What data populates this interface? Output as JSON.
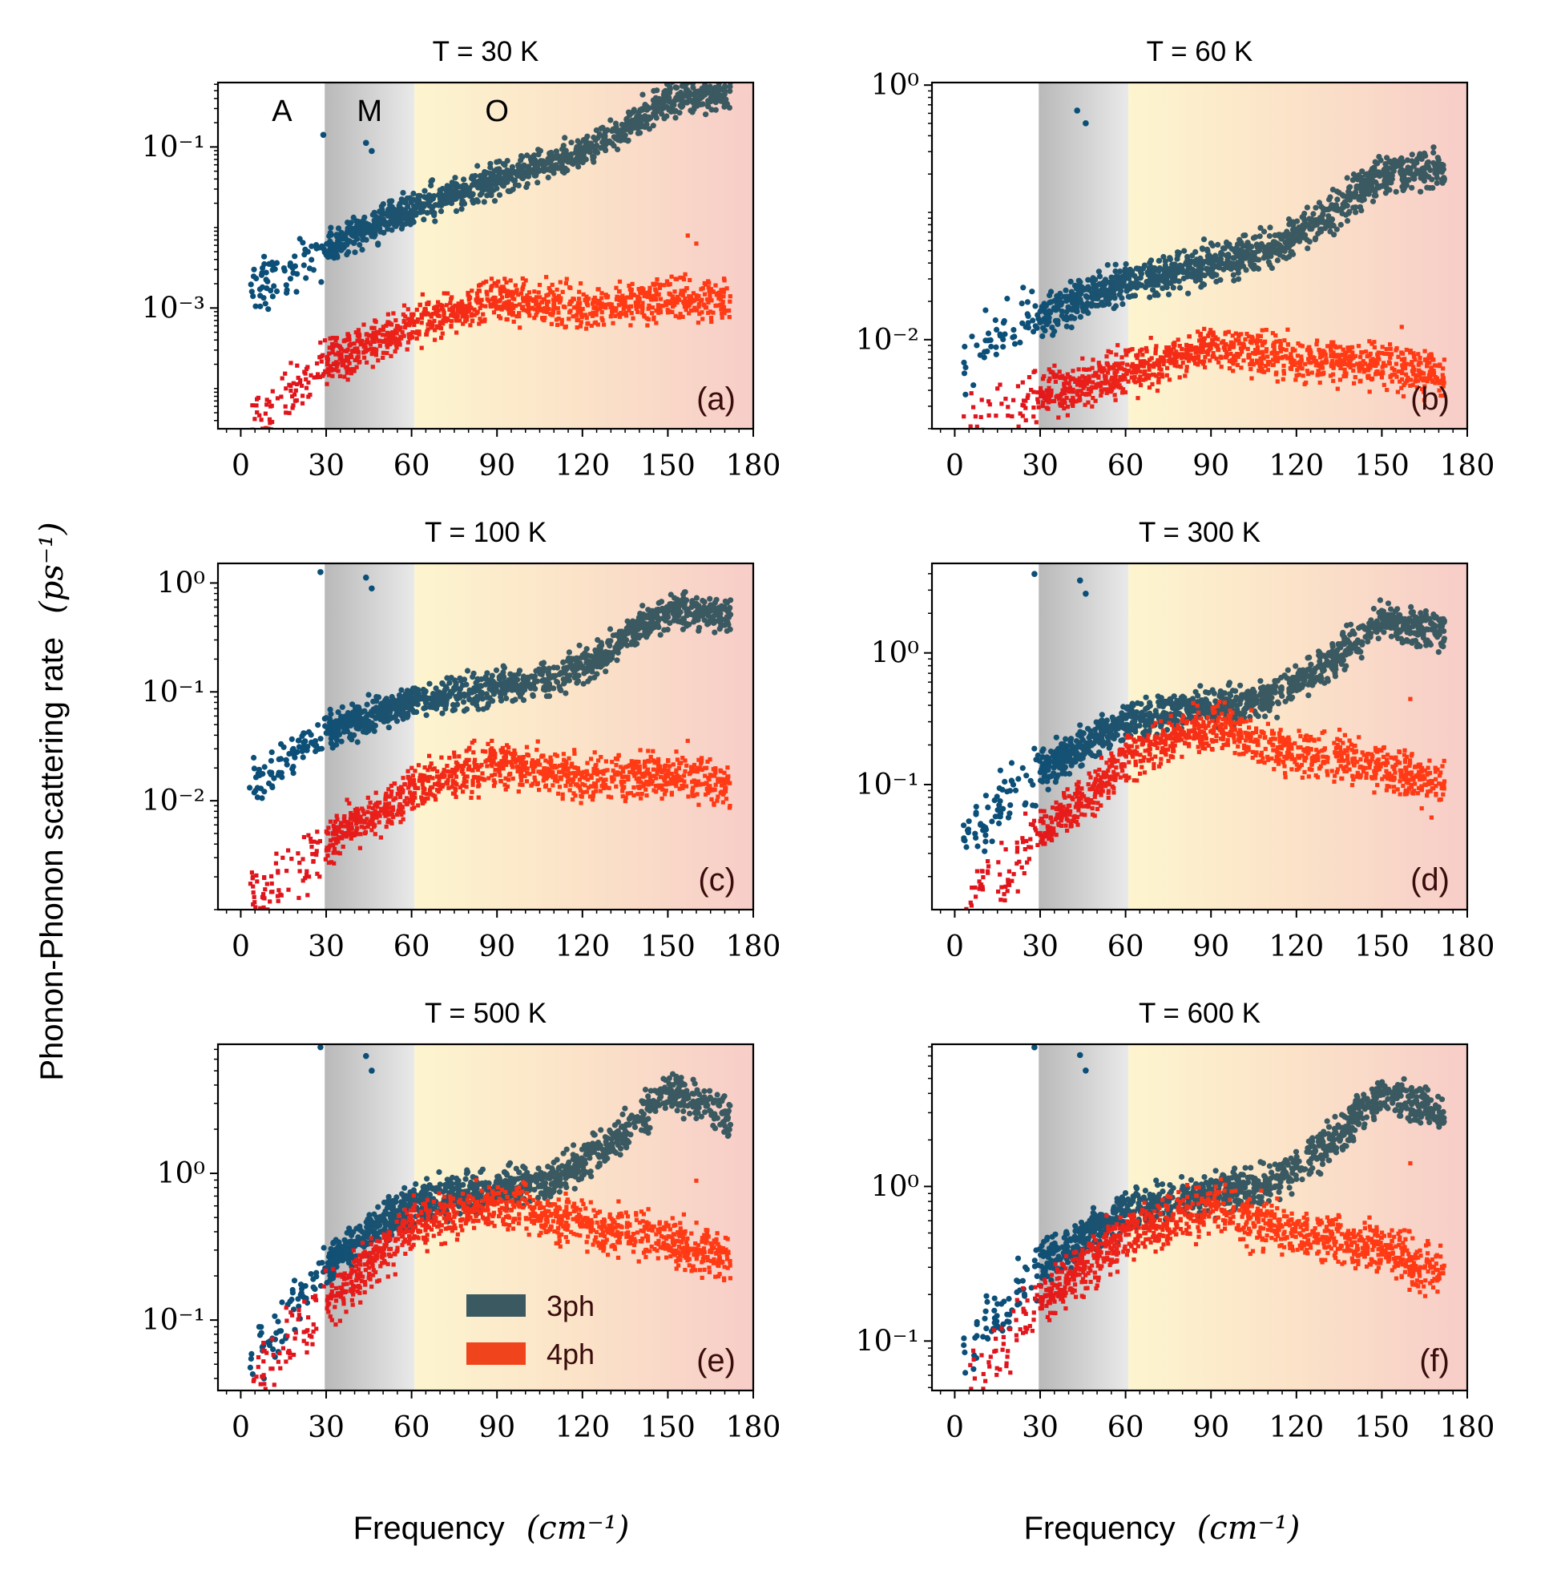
{
  "figure": {
    "ylabel": "Phonon-Phonon scattering rate",
    "ylabel_units": "(ps⁻¹)",
    "xlabel": "Frequency",
    "xlabel_units": "(cm⁻¹)"
  },
  "regions": [
    {
      "label": "A",
      "from": -5,
      "to": 29.5,
      "color": "#ffffff"
    },
    {
      "label": "M",
      "from": 29.5,
      "to": 61,
      "color": "#b9b9b9"
    },
    {
      "label": "O",
      "from": 61,
      "to": 180,
      "color": "#fdf5cf"
    }
  ],
  "legend": {
    "items": [
      {
        "label": "3ph",
        "color": "#3b5961"
      },
      {
        "label": "4ph",
        "color": "#f0441c"
      }
    ]
  },
  "colors": {
    "ph3_low": "#0b4f78",
    "ph3_high": "#3b5961",
    "ph4_low": "#e0141c",
    "ph4_high": "#ff3a14",
    "region_O_end": "#f7cdc8"
  },
  "chart_data": [
    {
      "type": "scatter",
      "id": "a",
      "title": "T = 30 K",
      "letter": "(a)",
      "xlim": [
        -8,
        180
      ],
      "xticks": [
        0,
        30,
        60,
        90,
        120,
        150,
        180
      ],
      "ylim_log10": [
        -4.5,
        -0.2
      ],
      "yticks_major": [
        -3,
        -1
      ],
      "show_regions": true,
      "series": [
        {
          "name": "3ph",
          "anchors": [
            [
              4,
              -2.75
            ],
            [
              30,
              -2.25
            ],
            [
              61,
              -1.75
            ],
            [
              90,
              -1.4
            ],
            [
              110,
              -1.2
            ],
            [
              130,
              -0.9
            ],
            [
              150,
              -0.4
            ],
            [
              172,
              -0.35
            ]
          ],
          "spread": 0.17,
          "outliers": [
            [
              29,
              -0.85
            ],
            [
              44,
              -0.95
            ],
            [
              46,
              -1.05
            ]
          ]
        },
        {
          "name": "4ph",
          "anchors": [
            [
              4,
              -4.4
            ],
            [
              30,
              -3.7
            ],
            [
              61,
              -3.2
            ],
            [
              90,
              -2.9
            ],
            [
              120,
              -3.0
            ],
            [
              150,
              -2.9
            ],
            [
              172,
              -2.9
            ]
          ],
          "spread": 0.22,
          "outliers": [
            [
              157,
              -2.1
            ],
            [
              160,
              -2.2
            ]
          ]
        }
      ]
    },
    {
      "type": "scatter",
      "id": "b",
      "title": "T = 60 K",
      "letter": "(b)",
      "xlim": [
        -8,
        180
      ],
      "xticks": [
        0,
        30,
        60,
        90,
        120,
        150,
        180
      ],
      "ylim_log10": [
        -2.7,
        0.02
      ],
      "yticks_major": [
        -2,
        0
      ],
      "show_regions": true,
      "series": [
        {
          "name": "3ph",
          "anchors": [
            [
              4,
              -2.15
            ],
            [
              30,
              -1.8
            ],
            [
              61,
              -1.55
            ],
            [
              90,
              -1.4
            ],
            [
              110,
              -1.3
            ],
            [
              130,
              -1.05
            ],
            [
              150,
              -0.7
            ],
            [
              172,
              -0.65
            ]
          ],
          "spread": 0.13,
          "outliers": [
            [
              43,
              -0.2
            ],
            [
              46,
              -0.3
            ]
          ]
        },
        {
          "name": "4ph",
          "anchors": [
            [
              4,
              -2.75
            ],
            [
              30,
              -2.45
            ],
            [
              61,
              -2.25
            ],
            [
              90,
              -2.05
            ],
            [
              120,
              -2.15
            ],
            [
              150,
              -2.2
            ],
            [
              172,
              -2.3
            ]
          ],
          "spread": 0.15,
          "outliers": [
            [
              157,
              -1.9
            ]
          ]
        }
      ]
    },
    {
      "type": "scatter",
      "id": "c",
      "title": "T = 100 K",
      "letter": "(c)",
      "xlim": [
        -8,
        180
      ],
      "xticks": [
        0,
        30,
        60,
        90,
        120,
        150,
        180
      ],
      "ylim_log10": [
        -3.0,
        0.18
      ],
      "yticks_major": [
        -2,
        -1,
        0
      ],
      "show_regions": true,
      "series": [
        {
          "name": "3ph",
          "anchors": [
            [
              4,
              -1.9
            ],
            [
              30,
              -1.35
            ],
            [
              61,
              -1.1
            ],
            [
              90,
              -0.95
            ],
            [
              110,
              -0.9
            ],
            [
              130,
              -0.6
            ],
            [
              150,
              -0.25
            ],
            [
              172,
              -0.3
            ]
          ],
          "spread": 0.13,
          "outliers": [
            [
              28,
              0.1
            ],
            [
              44,
              0.05
            ],
            [
              46,
              -0.05
            ]
          ]
        },
        {
          "name": "4ph",
          "anchors": [
            [
              4,
              -2.95
            ],
            [
              30,
              -2.4
            ],
            [
              61,
              -1.9
            ],
            [
              90,
              -1.65
            ],
            [
              120,
              -1.8
            ],
            [
              150,
              -1.75
            ],
            [
              172,
              -1.85
            ]
          ],
          "spread": 0.18,
          "outliers": [
            [
              157,
              -1.45
            ]
          ]
        }
      ]
    },
    {
      "type": "scatter",
      "id": "d",
      "title": "T = 300 K",
      "letter": "(d)",
      "xlim": [
        -8,
        180
      ],
      "xticks": [
        0,
        30,
        60,
        90,
        120,
        150,
        180
      ],
      "ylim_log10": [
        -1.95,
        0.68
      ],
      "yticks_major": [
        -1,
        0
      ],
      "show_regions": true,
      "series": [
        {
          "name": "3ph",
          "anchors": [
            [
              4,
              -1.4
            ],
            [
              30,
              -0.9
            ],
            [
              61,
              -0.5
            ],
            [
              90,
              -0.4
            ],
            [
              110,
              -0.35
            ],
            [
              130,
              -0.1
            ],
            [
              150,
              0.25
            ],
            [
              172,
              0.15
            ]
          ],
          "spread": 0.12,
          "outliers": [
            [
              28,
              0.6
            ],
            [
              44,
              0.55
            ],
            [
              46,
              0.45
            ]
          ]
        },
        {
          "name": "4ph",
          "anchors": [
            [
              4,
              -1.85
            ],
            [
              30,
              -1.4
            ],
            [
              61,
              -0.8
            ],
            [
              90,
              -0.55
            ],
            [
              120,
              -0.75
            ],
            [
              150,
              -0.85
            ],
            [
              172,
              -1.05
            ]
          ],
          "spread": 0.15,
          "outliers": [
            [
              160,
              -0.35
            ]
          ]
        }
      ]
    },
    {
      "type": "scatter",
      "id": "e",
      "title": "T = 500 K",
      "letter": "(e)",
      "xlim": [
        -8,
        180
      ],
      "xticks": [
        0,
        30,
        60,
        90,
        120,
        150,
        180
      ],
      "ylim_log10": [
        -1.48,
        0.88
      ],
      "yticks_major": [
        -1,
        0
      ],
      "show_regions": true,
      "series": [
        {
          "name": "3ph",
          "anchors": [
            [
              4,
              -1.3
            ],
            [
              30,
              -0.6
            ],
            [
              61,
              -0.2
            ],
            [
              90,
              -0.1
            ],
            [
              110,
              -0.05
            ],
            [
              130,
              0.2
            ],
            [
              150,
              0.55
            ],
            [
              172,
              0.4
            ]
          ],
          "spread": 0.11,
          "outliers": [
            [
              28,
              0.86
            ],
            [
              44,
              0.8
            ],
            [
              46,
              0.7
            ]
          ]
        },
        {
          "name": "4ph",
          "anchors": [
            [
              4,
              -1.45
            ],
            [
              30,
              -0.9
            ],
            [
              61,
              -0.35
            ],
            [
              90,
              -0.2
            ],
            [
              120,
              -0.35
            ],
            [
              150,
              -0.45
            ],
            [
              172,
              -0.6
            ]
          ],
          "spread": 0.14,
          "outliers": [
            [
              160,
              -0.05
            ]
          ]
        }
      ]
    },
    {
      "type": "scatter",
      "id": "f",
      "title": "T = 600 K",
      "letter": "(f)",
      "xlim": [
        -8,
        180
      ],
      "xticks": [
        0,
        30,
        60,
        90,
        120,
        150,
        180
      ],
      "ylim_log10": [
        -1.32,
        0.92
      ],
      "yticks_major": [
        -1,
        0
      ],
      "show_regions": true,
      "series": [
        {
          "name": "3ph",
          "anchors": [
            [
              4,
              -1.1
            ],
            [
              30,
              -0.5
            ],
            [
              61,
              -0.15
            ],
            [
              90,
              -0.05
            ],
            [
              110,
              0.0
            ],
            [
              130,
              0.25
            ],
            [
              150,
              0.6
            ],
            [
              172,
              0.45
            ]
          ],
          "spread": 0.11,
          "outliers": [
            [
              28,
              0.9
            ],
            [
              44,
              0.85
            ],
            [
              46,
              0.75
            ]
          ]
        },
        {
          "name": "4ph",
          "anchors": [
            [
              4,
              -1.3
            ],
            [
              30,
              -0.75
            ],
            [
              61,
              -0.3
            ],
            [
              90,
              -0.15
            ],
            [
              120,
              -0.3
            ],
            [
              150,
              -0.4
            ],
            [
              172,
              -0.55
            ]
          ],
          "spread": 0.14,
          "outliers": [
            [
              160,
              0.15
            ]
          ]
        }
      ]
    }
  ]
}
